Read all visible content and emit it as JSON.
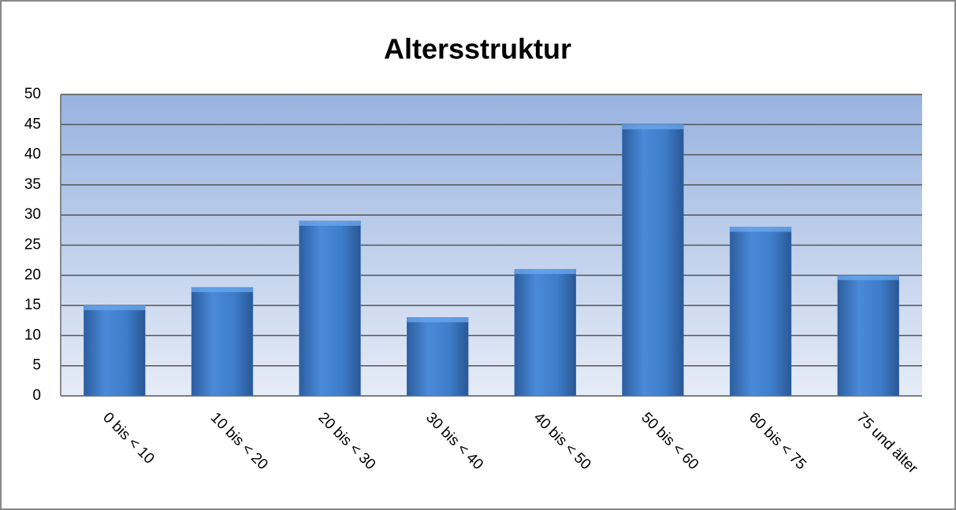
{
  "chart_data": {
    "type": "bar",
    "title": "Altersstruktur",
    "categories": [
      "0 bis < 10",
      "10 bis < 20",
      "20 bis < 30",
      "30 bis < 40",
      "40 bis < 50",
      "50 bis < 60",
      "60 bis < 75",
      "75 und älter"
    ],
    "values": [
      15,
      18,
      29,
      13,
      21,
      45,
      28,
      20
    ],
    "color": "#3d7cc9",
    "ylim": [
      0,
      50
    ],
    "yticks": [
      0,
      5,
      10,
      15,
      20,
      25,
      30,
      35,
      40,
      45,
      50
    ],
    "grid": true
  }
}
